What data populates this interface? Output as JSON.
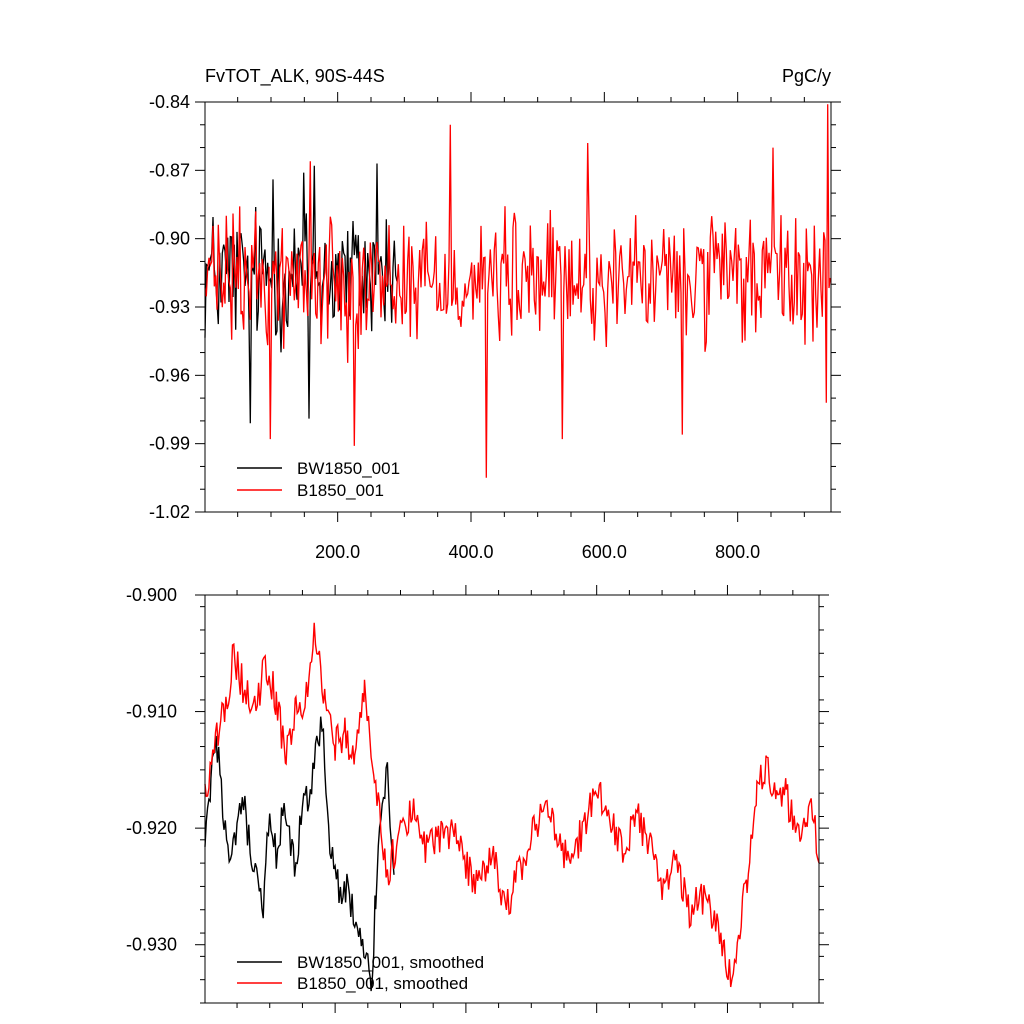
{
  "chart_data": [
    {
      "type": "line",
      "title": "FvTOT_ALK, 90S-44S",
      "units": "PgC/y",
      "xlabel": "",
      "ylabel": "",
      "xlim": [
        1,
        940
      ],
      "ylim": [
        -1.02,
        -0.84
      ],
      "x_ticks": [
        200,
        400,
        600,
        800
      ],
      "x_tick_labels": [
        "200.0",
        "400.0",
        "600.0",
        "800.0"
      ],
      "y_ticks": [
        -1.02,
        -0.99,
        -0.96,
        -0.93,
        -0.9,
        -0.87,
        -0.84
      ],
      "y_tick_labels": [
        "-1.02",
        "-0.99",
        "-0.96",
        "-0.93",
        "-0.90",
        "-0.87",
        "-0.84"
      ],
      "grid": false,
      "legend_position": "bottom-left",
      "series": [
        {
          "name": "BW1850_001",
          "color": "#000000",
          "x_range": [
            1,
            290
          ],
          "mean": -0.916,
          "amplitude": 0.026,
          "keypoints": [
            [
              70,
              -0.981
            ],
            [
              104,
              -0.874
            ],
            [
              150,
              -0.871
            ],
            [
              158,
              -0.979
            ],
            [
              165,
              -0.868
            ],
            [
              260,
              -0.867
            ]
          ]
        },
        {
          "name": "B1850_001",
          "color": "#ff0000",
          "x_range": [
            1,
            940
          ],
          "mean": -0.918,
          "amplitude": 0.024,
          "keypoints": [
            [
              100,
              -0.988
            ],
            [
              160,
              -0.866
            ],
            [
              225,
              -0.991
            ],
            [
              370,
              -0.85
            ],
            [
              424,
              -1.005
            ],
            [
              538,
              -0.988
            ],
            [
              575,
              -0.858
            ],
            [
              718,
              -0.986
            ],
            [
              853,
              -0.86
            ],
            [
              936,
              -0.841
            ],
            [
              934,
              -0.972
            ]
          ]
        }
      ]
    },
    {
      "type": "line",
      "title": "",
      "xlabel": "",
      "ylabel": "",
      "xlim": [
        1,
        940
      ],
      "ylim": [
        -0.935,
        -0.9
      ],
      "x_ticks": [
        200,
        400,
        600,
        800
      ],
      "y_ticks": [
        -0.93,
        -0.92,
        -0.91,
        -0.9
      ],
      "y_tick_labels": [
        "-0.930",
        "-0.920",
        "-0.910",
        "-0.900"
      ],
      "grid": false,
      "legend_position": "bottom-left",
      "series": [
        {
          "name": "BW1850_001, smoothed",
          "color": "#000000",
          "x_range": [
            1,
            290
          ],
          "path": [
            [
              1,
              -0.922
            ],
            [
              10,
              -0.916
            ],
            [
              20,
              -0.913
            ],
            [
              30,
              -0.919
            ],
            [
              40,
              -0.924
            ],
            [
              50,
              -0.92
            ],
            [
              60,
              -0.918
            ],
            [
              70,
              -0.922
            ],
            [
              80,
              -0.925
            ],
            [
              90,
              -0.927
            ],
            [
              100,
              -0.918
            ],
            [
              110,
              -0.923
            ],
            [
              120,
              -0.919
            ],
            [
              130,
              -0.921
            ],
            [
              140,
              -0.924
            ],
            [
              150,
              -0.918
            ],
            [
              160,
              -0.917
            ],
            [
              170,
              -0.914
            ],
            [
              180,
              -0.911
            ],
            [
              190,
              -0.92
            ],
            [
              200,
              -0.924
            ],
            [
              210,
              -0.926
            ],
            [
              220,
              -0.925
            ],
            [
              230,
              -0.928
            ],
            [
              240,
              -0.93
            ],
            [
              250,
              -0.932
            ],
            [
              255,
              -0.934
            ],
            [
              262,
              -0.926
            ],
            [
              270,
              -0.918
            ],
            [
              280,
              -0.915
            ],
            [
              290,
              -0.924
            ]
          ]
        },
        {
          "name": "B1850_001, smoothed",
          "color": "#ff0000",
          "x_range": [
            1,
            940
          ],
          "path": [
            [
              1,
              -0.917
            ],
            [
              15,
              -0.914
            ],
            [
              25,
              -0.91
            ],
            [
              35,
              -0.909
            ],
            [
              45,
              -0.905
            ],
            [
              60,
              -0.908
            ],
            [
              75,
              -0.91
            ],
            [
              95,
              -0.906
            ],
            [
              110,
              -0.909
            ],
            [
              125,
              -0.914
            ],
            [
              140,
              -0.909
            ],
            [
              150,
              -0.91
            ],
            [
              160,
              -0.907
            ],
            [
              170,
              -0.903
            ],
            [
              185,
              -0.91
            ],
            [
              200,
              -0.913
            ],
            [
              215,
              -0.912
            ],
            [
              230,
              -0.915
            ],
            [
              245,
              -0.908
            ],
            [
              260,
              -0.916
            ],
            [
              280,
              -0.924
            ],
            [
              300,
              -0.92
            ],
            [
              320,
              -0.918
            ],
            [
              340,
              -0.922
            ],
            [
              360,
              -0.921
            ],
            [
              380,
              -0.92
            ],
            [
              400,
              -0.923
            ],
            [
              420,
              -0.925
            ],
            [
              440,
              -0.922
            ],
            [
              460,
              -0.927
            ],
            [
              480,
              -0.924
            ],
            [
              500,
              -0.921
            ],
            [
              520,
              -0.918
            ],
            [
              540,
              -0.921
            ],
            [
              560,
              -0.923
            ],
            [
              580,
              -0.92
            ],
            [
              600,
              -0.917
            ],
            [
              620,
              -0.919
            ],
            [
              640,
              -0.922
            ],
            [
              660,
              -0.919
            ],
            [
              680,
              -0.921
            ],
            [
              700,
              -0.925
            ],
            [
              720,
              -0.923
            ],
            [
              740,
              -0.927
            ],
            [
              760,
              -0.926
            ],
            [
              780,
              -0.928
            ],
            [
              795,
              -0.931
            ],
            [
              805,
              -0.933
            ],
            [
              815,
              -0.93
            ],
            [
              830,
              -0.924
            ],
            [
              845,
              -0.917
            ],
            [
              860,
              -0.914
            ],
            [
              875,
              -0.918
            ],
            [
              890,
              -0.917
            ],
            [
              905,
              -0.921
            ],
            [
              920,
              -0.919
            ],
            [
              930,
              -0.918
            ],
            [
              940,
              -0.923
            ]
          ]
        }
      ]
    }
  ]
}
